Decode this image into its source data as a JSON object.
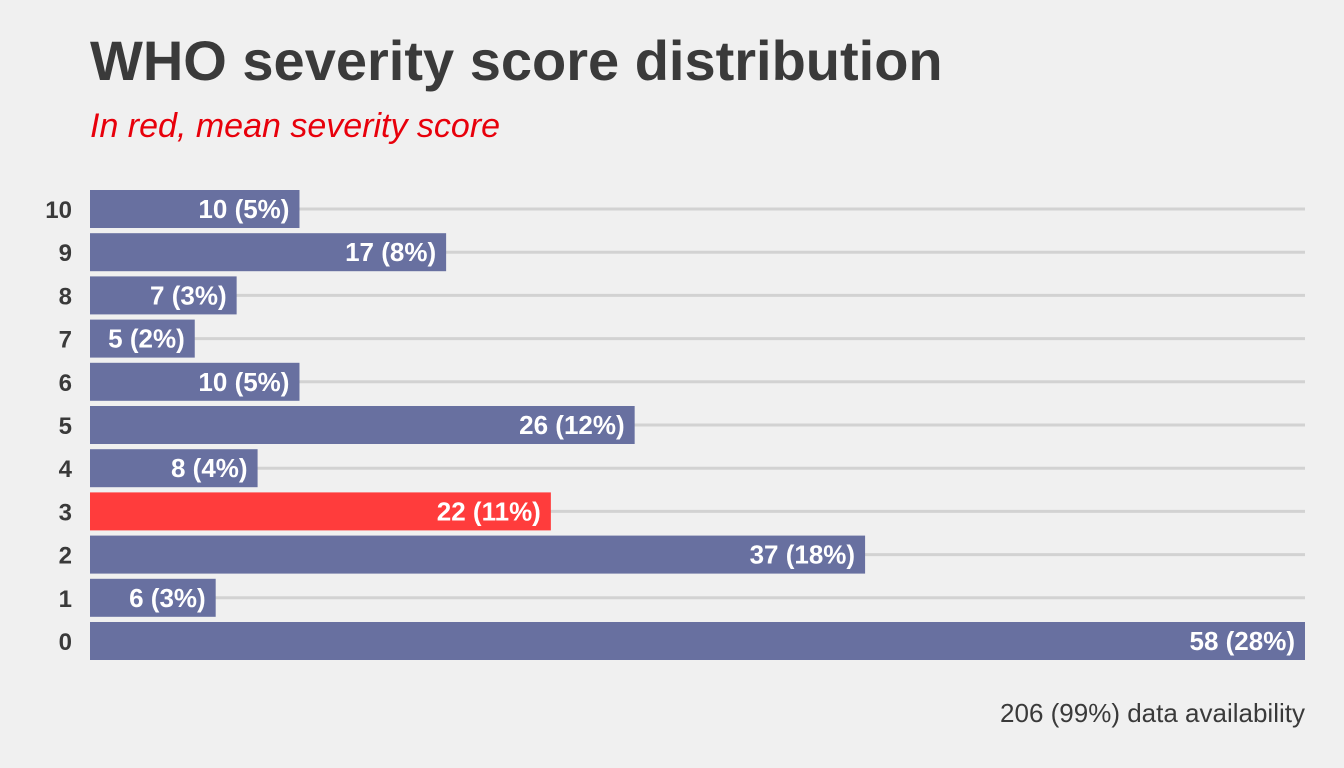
{
  "chart_data": {
    "type": "bar",
    "orientation": "horizontal",
    "title": "WHO severity score distribution",
    "subtitle": "In red, mean severity score",
    "caption": "206 (99%) data availability",
    "categories": [
      "10",
      "9",
      "8",
      "7",
      "6",
      "5",
      "4",
      "3",
      "2",
      "1",
      "0"
    ],
    "values": [
      10,
      17,
      7,
      5,
      10,
      26,
      8,
      22,
      37,
      6,
      58
    ],
    "labels": [
      "10 (5%)",
      "17 (8%)",
      "7 (3%)",
      "5 (2%)",
      "10 (5%)",
      "26 (12%)",
      "8 (4%)",
      "22 (11%)",
      "37 (18%)",
      "6 (3%)",
      "58 (28%)"
    ],
    "highlight_category": "3",
    "xlim": [
      0,
      58
    ],
    "xlabel": "",
    "ylabel": "",
    "grid": true,
    "legend": "none",
    "colors": {
      "bar": "#6870a0",
      "highlight": "#ff3c3c",
      "subtitle": "#e8000b",
      "background": "#f0f0f0",
      "grid": "#d2d2d2",
      "text": "#3a3a3a",
      "bar_text": "#ffffff"
    }
  }
}
